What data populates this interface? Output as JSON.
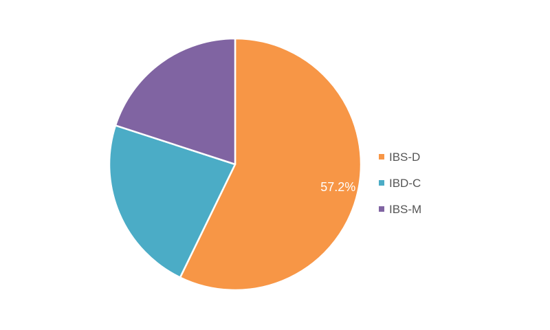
{
  "chart_data": {
    "type": "pie",
    "title": "",
    "slices": [
      {
        "name": "IBS-D",
        "value": 57.2,
        "color": "#F79646",
        "label": "57.2%"
      },
      {
        "name": "IBD-C",
        "value": 22.8,
        "color": "#4BACC6",
        "label": ""
      },
      {
        "name": "IBS-M",
        "value": 20.0,
        "color": "#8064A2",
        "label": ""
      }
    ],
    "legend_position": "right"
  }
}
